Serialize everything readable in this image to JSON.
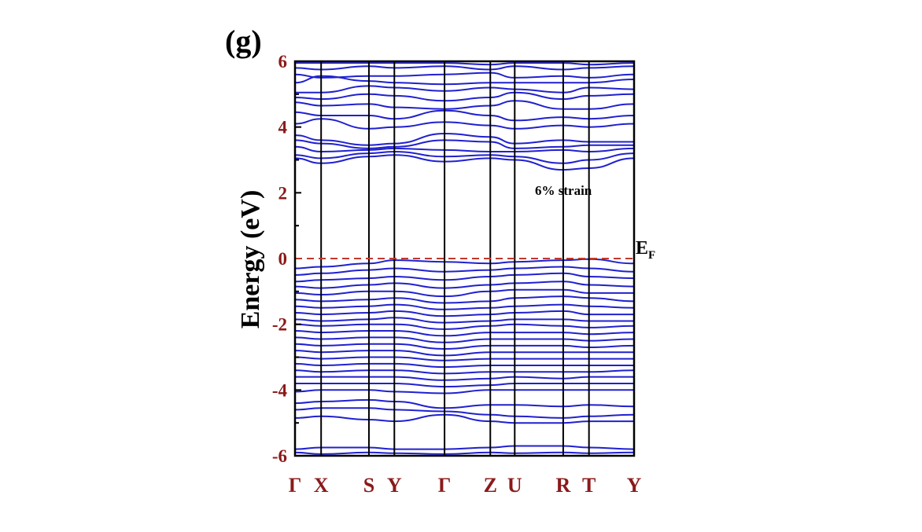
{
  "panel_label": "(g)",
  "chart_data": {
    "type": "line",
    "title": "",
    "ylabel": "Energy (eV)",
    "ylim": [
      -6,
      6
    ],
    "yticks": [
      "-6",
      "-4",
      "-2",
      "0",
      "2",
      "4",
      "6"
    ],
    "ytick_values": [
      -6,
      -4,
      -2,
      0,
      2,
      4,
      6
    ],
    "k_path_labels": [
      "Γ",
      "X",
      "S",
      "Y",
      "Γ",
      "Z",
      "U",
      "R",
      "T",
      "Y"
    ],
    "k_path_positions": [
      0,
      0.077,
      0.218,
      0.293,
      0.441,
      0.576,
      0.648,
      0.791,
      0.867,
      1.0
    ],
    "fermi_level": 0,
    "fermi_label": "E",
    "fermi_label_sub": "F",
    "annotation": "6% strain",
    "colors": {
      "bands": "#2020d0",
      "fermi_line": "#c0392b",
      "tick_labels": "#8b1a1a"
    },
    "conduction_band_nodes": [
      [
        3.05,
        2.9,
        3.1,
        3.15,
        2.95,
        3.05,
        3.0,
        2.7,
        2.75,
        3.05
      ],
      [
        3.15,
        3.05,
        3.2,
        3.25,
        3.1,
        3.15,
        3.1,
        2.9,
        3.0,
        3.2
      ],
      [
        3.4,
        3.25,
        3.3,
        3.35,
        3.3,
        3.25,
        3.25,
        3.3,
        3.25,
        3.35
      ],
      [
        3.6,
        3.5,
        3.35,
        3.4,
        3.6,
        3.55,
        3.35,
        3.4,
        3.45,
        3.45
      ],
      [
        3.75,
        3.6,
        3.45,
        3.5,
        3.8,
        3.7,
        3.5,
        3.6,
        3.55,
        3.55
      ],
      [
        4.1,
        4.25,
        3.95,
        4.0,
        4.15,
        4.05,
        3.95,
        4.05,
        4.0,
        4.1
      ],
      [
        4.45,
        4.35,
        4.35,
        4.25,
        4.5,
        4.35,
        4.2,
        4.3,
        4.25,
        4.35
      ],
      [
        4.75,
        4.65,
        4.7,
        4.6,
        4.55,
        4.65,
        4.8,
        4.55,
        4.55,
        4.7
      ],
      [
        4.9,
        4.85,
        5.0,
        4.95,
        4.8,
        4.9,
        5.05,
        4.85,
        4.95,
        5.0
      ],
      [
        5.05,
        5.05,
        5.25,
        5.2,
        5.1,
        5.2,
        5.15,
        5.05,
        5.2,
        5.15
      ],
      [
        5.35,
        5.55,
        5.4,
        5.35,
        5.3,
        5.35,
        5.35,
        5.35,
        5.35,
        5.45
      ],
      [
        5.6,
        5.5,
        5.55,
        5.55,
        5.6,
        5.65,
        5.5,
        5.55,
        5.5,
        5.6
      ],
      [
        5.8,
        5.75,
        5.85,
        5.8,
        5.85,
        5.75,
        5.85,
        5.75,
        5.8,
        5.85
      ],
      [
        5.95,
        5.95,
        5.95,
        5.95,
        5.95,
        5.9,
        5.95,
        5.95,
        5.9,
        5.95
      ]
    ],
    "valence_band_nodes": [
      [
        -0.3,
        -0.25,
        -0.15,
        -0.05,
        -0.1,
        -0.15,
        -0.1,
        -0.05,
        -0.02,
        -0.15
      ],
      [
        -0.5,
        -0.45,
        -0.35,
        -0.3,
        -0.4,
        -0.35,
        -0.3,
        -0.25,
        -0.3,
        -0.4
      ],
      [
        -0.7,
        -0.65,
        -0.6,
        -0.55,
        -0.65,
        -0.55,
        -0.5,
        -0.45,
        -0.55,
        -0.6
      ],
      [
        -0.85,
        -0.9,
        -0.8,
        -0.75,
        -0.9,
        -0.8,
        -0.75,
        -0.7,
        -0.8,
        -0.85
      ],
      [
        -1.05,
        -1.1,
        -1.0,
        -1.0,
        -1.15,
        -1.0,
        -0.95,
        -0.95,
        -1.05,
        -1.05
      ],
      [
        -1.25,
        -1.3,
        -1.25,
        -1.2,
        -1.35,
        -1.3,
        -1.2,
        -1.15,
        -1.2,
        -1.3
      ],
      [
        -1.45,
        -1.5,
        -1.45,
        -1.4,
        -1.55,
        -1.5,
        -1.45,
        -1.4,
        -1.45,
        -1.5
      ],
      [
        -1.65,
        -1.7,
        -1.65,
        -1.6,
        -1.75,
        -1.7,
        -1.65,
        -1.6,
        -1.7,
        -1.7
      ],
      [
        -1.85,
        -1.9,
        -1.85,
        -1.8,
        -1.95,
        -1.9,
        -1.85,
        -1.85,
        -1.9,
        -1.9
      ],
      [
        -2.0,
        -2.05,
        -2.0,
        -2.0,
        -2.15,
        -2.05,
        -2.0,
        -2.05,
        -2.1,
        -2.05
      ],
      [
        -2.2,
        -2.25,
        -2.2,
        -2.2,
        -2.35,
        -2.25,
        -2.25,
        -2.25,
        -2.3,
        -2.25
      ],
      [
        -2.4,
        -2.45,
        -2.4,
        -2.4,
        -2.55,
        -2.45,
        -2.45,
        -2.45,
        -2.5,
        -2.45
      ],
      [
        -2.6,
        -2.65,
        -2.6,
        -2.6,
        -2.75,
        -2.65,
        -2.65,
        -2.65,
        -2.7,
        -2.65
      ],
      [
        -2.8,
        -2.85,
        -2.8,
        -2.8,
        -2.95,
        -2.85,
        -2.85,
        -2.85,
        -2.85,
        -2.85
      ],
      [
        -3.0,
        -3.05,
        -3.0,
        -3.0,
        -3.1,
        -3.05,
        -3.05,
        -3.05,
        -3.05,
        -3.05
      ],
      [
        -3.2,
        -3.25,
        -3.2,
        -3.2,
        -3.3,
        -3.25,
        -3.25,
        -3.25,
        -3.25,
        -3.25
      ],
      [
        -3.4,
        -3.45,
        -3.4,
        -3.4,
        -3.5,
        -3.45,
        -3.45,
        -3.45,
        -3.45,
        -3.4
      ],
      [
        -3.6,
        -3.6,
        -3.6,
        -3.6,
        -3.7,
        -3.65,
        -3.6,
        -3.65,
        -3.6,
        -3.6
      ],
      [
        -3.8,
        -3.8,
        -3.8,
        -3.8,
        -3.9,
        -3.85,
        -3.8,
        -3.8,
        -3.8,
        -3.8
      ],
      [
        -4.05,
        -4.0,
        -4.0,
        -4.05,
        -4.1,
        -4.0,
        -4.0,
        -4.0,
        -4.0,
        -4.0
      ],
      [
        -4.4,
        -4.35,
        -4.3,
        -4.35,
        -4.55,
        -4.45,
        -4.45,
        -4.5,
        -4.45,
        -4.5
      ],
      [
        -4.6,
        -4.55,
        -4.55,
        -4.6,
        -4.65,
        -4.75,
        -4.8,
        -4.85,
        -4.8,
        -4.75
      ],
      [
        -4.85,
        -4.8,
        -4.9,
        -4.95,
        -4.75,
        -4.95,
        -5.0,
        -5.0,
        -4.95,
        -4.95
      ],
      [
        -5.8,
        -5.75,
        -5.75,
        -5.8,
        -5.8,
        -5.75,
        -5.7,
        -5.7,
        -5.75,
        -5.8
      ],
      [
        -5.9,
        -5.95,
        -5.9,
        -5.92,
        -5.95,
        -5.9,
        -5.92,
        -5.9,
        -5.92,
        -5.9
      ]
    ]
  }
}
